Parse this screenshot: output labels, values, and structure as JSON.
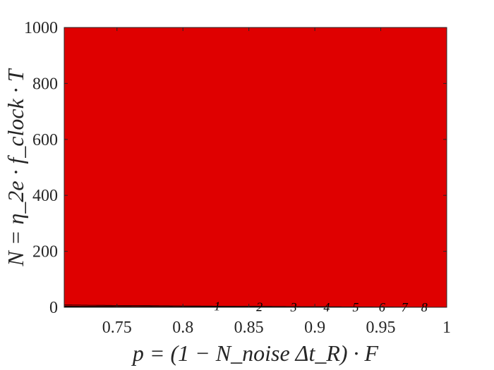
{
  "chart_data": {
    "type": "contour",
    "title": "",
    "xlabel": "p = (1 − N_noise Δt_R) · F",
    "ylabel": "N = η_2e · f_clock · T",
    "xlim": [
      0.71,
      1.0
    ],
    "ylim": [
      0,
      1000
    ],
    "xticks": [
      0.75,
      0.8,
      0.85,
      0.9,
      0.95,
      1
    ],
    "xtick_labels": [
      "0.75",
      "0.8",
      "0.85",
      "0.9",
      "0.95",
      "1"
    ],
    "yticks": [
      0,
      200,
      400,
      600,
      800,
      1000
    ],
    "ytick_labels": [
      "0",
      "200",
      "400",
      "600",
      "800",
      "1000"
    ],
    "levels": [
      1,
      2,
      3,
      4,
      5,
      6,
      7,
      8
    ],
    "level_labels": [
      "1",
      "2",
      "3",
      "4",
      "5",
      "6",
      "7",
      "8"
    ],
    "colormap": "jet",
    "band_colors": [
      "#00008f",
      "#0000ff",
      "#0070ff",
      "#00dfff",
      "#50ffaf",
      "#bfff40",
      "#ffcf00",
      "#ff6000",
      "#df0000"
    ],
    "grid": false
  }
}
